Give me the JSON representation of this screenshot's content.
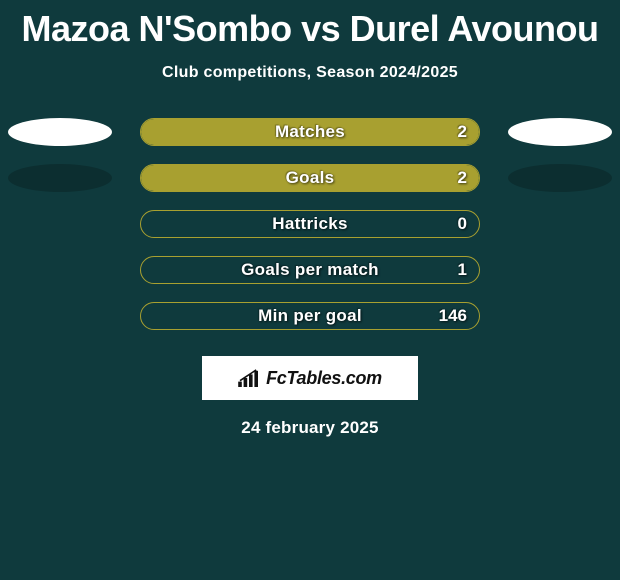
{
  "title": "Mazoa N'Sombo vs Durel Avounou",
  "subtitle": "Club competitions, Season 2024/2025",
  "date": "24 february 2025",
  "logo_text": "FcTables.com",
  "colors": {
    "background": "#0f3a3d",
    "bar_fill": "#a8a030",
    "bar_border": "#a8a030",
    "ellipse_white": "#ffffff",
    "ellipse_dark": "#0c2e30",
    "text": "#ffffff",
    "logo_bg": "#ffffff",
    "logo_text": "#111111"
  },
  "stats": [
    {
      "label": "Matches",
      "value": "2",
      "fill_pct": 100,
      "show_ellipses": true,
      "left_ellipse": "white",
      "right_ellipse": "white"
    },
    {
      "label": "Goals",
      "value": "2",
      "fill_pct": 100,
      "show_ellipses": true,
      "left_ellipse": "dark",
      "right_ellipse": "dark"
    },
    {
      "label": "Hattricks",
      "value": "0",
      "fill_pct": 0,
      "show_ellipses": false
    },
    {
      "label": "Goals per match",
      "value": "1",
      "fill_pct": 0,
      "show_ellipses": false
    },
    {
      "label": "Min per goal",
      "value": "146",
      "fill_pct": 0,
      "show_ellipses": false
    }
  ]
}
